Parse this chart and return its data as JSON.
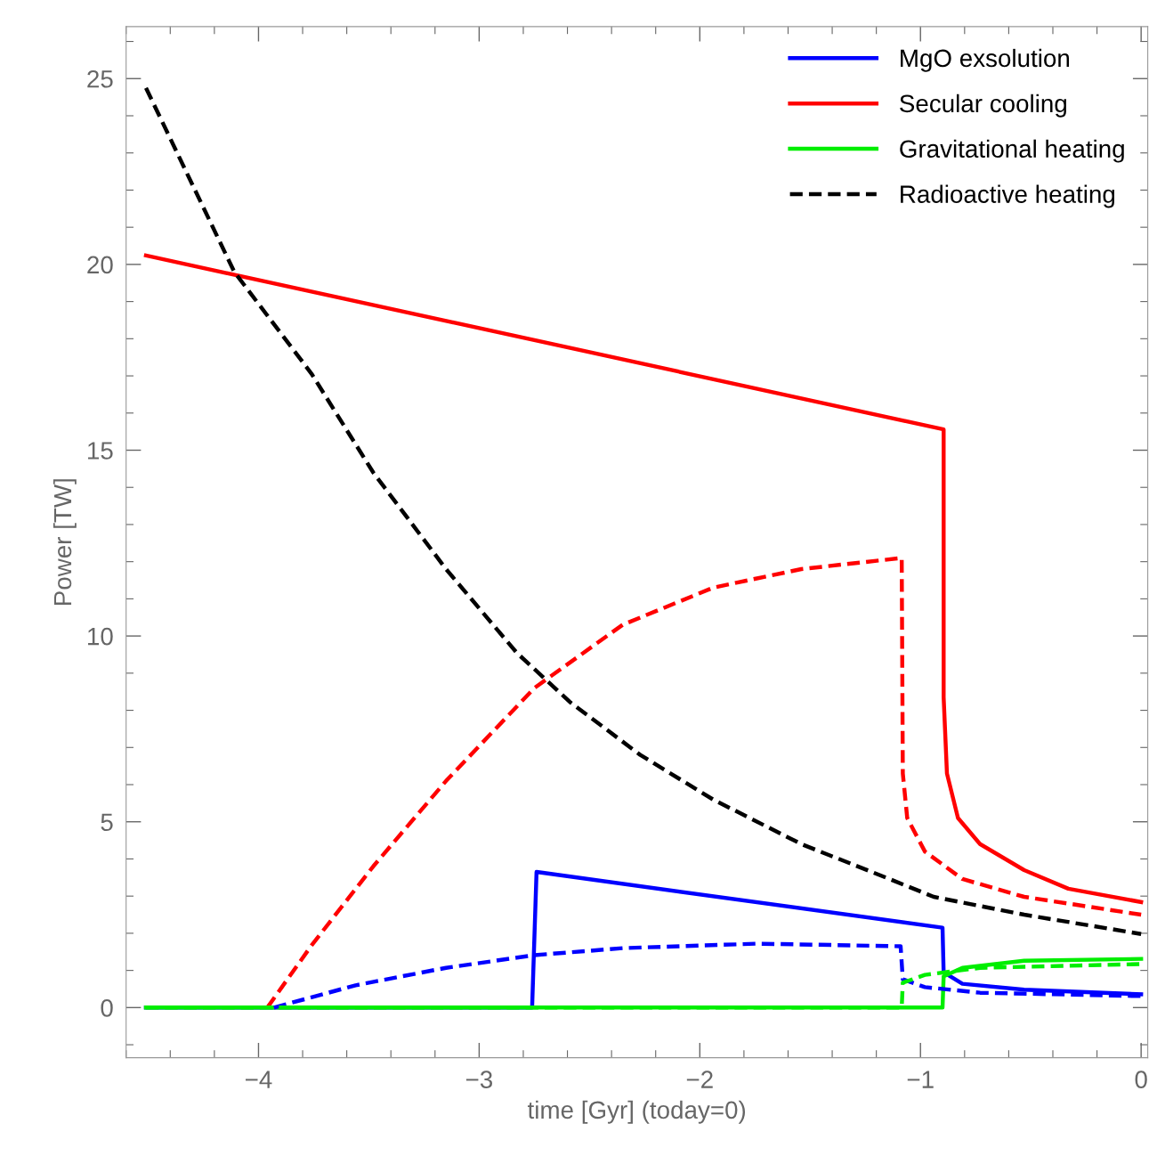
{
  "chart_data": {
    "type": "line",
    "xlabel": "time [Gyr] (today=0)",
    "ylabel": "Power [TW]",
    "xlim": [
      -4.6,
      0.03
    ],
    "ylim": [
      -1.35,
      26.4
    ],
    "xticks": [
      {
        "value": -4,
        "label": "−4"
      },
      {
        "value": -3,
        "label": "−3"
      },
      {
        "value": -2,
        "label": "−2"
      },
      {
        "value": -1,
        "label": "−1"
      },
      0
    ],
    "yticks": [
      0,
      5,
      10,
      15,
      20,
      25
    ],
    "grid": false,
    "legend": "top right",
    "series": [
      {
        "name": "MgO exsolution",
        "color": "#0000ff",
        "line_style": "solid",
        "x": [
          -4.51,
          -2.76,
          -2.74,
          -0.9,
          -0.895,
          -0.81,
          -0.53,
          0
        ],
        "values": [
          0,
          0,
          3.65,
          2.15,
          0.95,
          0.64,
          0.48,
          0.36
        ]
      },
      {
        "name": "Secular cooling",
        "color": "#ff0000",
        "line_style": "solid",
        "x": [
          -4.51,
          -0.895,
          -0.895,
          -0.88,
          -0.83,
          -0.73,
          -0.53,
          -0.33,
          0
        ],
        "values": [
          20.24,
          15.56,
          8.35,
          6.3,
          5.1,
          4.4,
          3.7,
          3.2,
          2.84
        ]
      },
      {
        "name": "Gravitational heating",
        "color": "#00ee00",
        "line_style": "solid",
        "x": [
          -4.51,
          -0.9,
          -0.895,
          -0.81,
          -0.53,
          0
        ],
        "values": [
          0,
          0,
          0.84,
          1.07,
          1.26,
          1.31
        ]
      },
      {
        "name": "Radioactive heating",
        "color": "#000000",
        "line_style": "dashed",
        "x": [
          -4.51,
          -4.11,
          -3.76,
          -3.48,
          -3.15,
          -2.83,
          -2.59,
          -2.27,
          -1.94,
          -1.54,
          -1.14,
          -0.94,
          -0.53,
          0
        ],
        "values": [
          24.75,
          19.8,
          17.06,
          14.4,
          11.8,
          9.55,
          8.23,
          6.8,
          5.6,
          4.4,
          3.46,
          2.98,
          2.5,
          1.98
        ]
      },
      {
        "color": "#ff0000",
        "line_style": "dashed",
        "x": [
          -3.96,
          -3.76,
          -3.48,
          -3.15,
          -2.75,
          -2.35,
          -1.94,
          -1.54,
          -1.085,
          -1.08,
          -1.06,
          -0.98,
          -0.81,
          -0.53,
          0
        ],
        "values": [
          0,
          1.67,
          3.8,
          6.1,
          8.6,
          10.3,
          11.3,
          11.8,
          12.1,
          6.3,
          5.1,
          4.2,
          3.46,
          2.98,
          2.5
        ]
      },
      {
        "color": "#0000ff",
        "line_style": "dashed",
        "x": [
          -3.93,
          -3.56,
          -3.15,
          -2.75,
          -2.35,
          -1.74,
          -1.09,
          -1.08,
          -0.98,
          -0.73,
          0
        ],
        "values": [
          0,
          0.6,
          1.07,
          1.41,
          1.6,
          1.72,
          1.65,
          0.76,
          0.55,
          0.4,
          0.31
        ]
      },
      {
        "color": "#00ee00",
        "line_style": "dashed",
        "x": [
          -4.51,
          -1.085,
          -1.08,
          -0.98,
          -0.73,
          0
        ],
        "values": [
          0,
          0,
          0.67,
          0.88,
          1.07,
          1.17
        ]
      }
    ]
  }
}
